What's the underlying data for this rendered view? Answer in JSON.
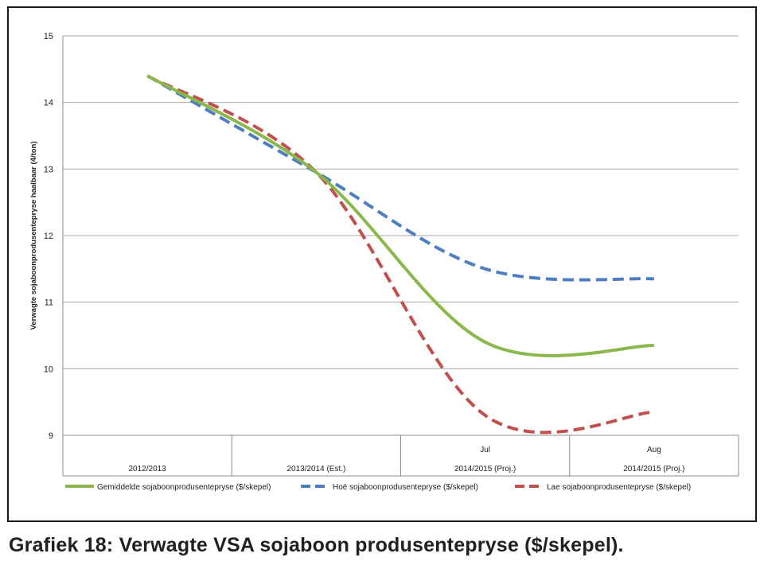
{
  "caption": "Grafiek 18: Verwagte VSA sojaboon produsentepryse ($/skepel).",
  "chart_data": {
    "type": "line",
    "title": "",
    "xlabel": "",
    "ylabel": "Verwagte sojaboonprodusentepryse haalbaar (4/ton)",
    "ylim": [
      9,
      15
    ],
    "yticks": [
      9,
      10,
      11,
      12,
      13,
      14,
      15
    ],
    "grid": true,
    "legend_position": "bottom",
    "categories": [
      {
        "top": "",
        "bottom": "2012/2013"
      },
      {
        "top": "",
        "bottom": "2013/2014 (Est.)"
      },
      {
        "top": "Jul",
        "bottom": "2014/2015 (Proj.)"
      },
      {
        "top": "Aug",
        "bottom": "2014/2015 (Proj.)"
      }
    ],
    "series": [
      {
        "name": "Gemiddelde sojaboonprodusentepryse ($/skepel)",
        "color": "#8bb84a",
        "dash": "solid",
        "values": [
          14.4,
          12.95,
          10.4,
          10.35
        ]
      },
      {
        "name": "Hoë sojaboonprodusentepryse ($/skepel)",
        "color": "#4f7ec0",
        "dash": "dashed",
        "values": [
          14.4,
          12.95,
          11.5,
          11.35
        ]
      },
      {
        "name": "Lae sojaboonprodusentepryse ($/skepel)",
        "color": "#c0504d",
        "dash": "dashed",
        "values": [
          14.4,
          12.95,
          9.3,
          9.35
        ]
      }
    ]
  }
}
